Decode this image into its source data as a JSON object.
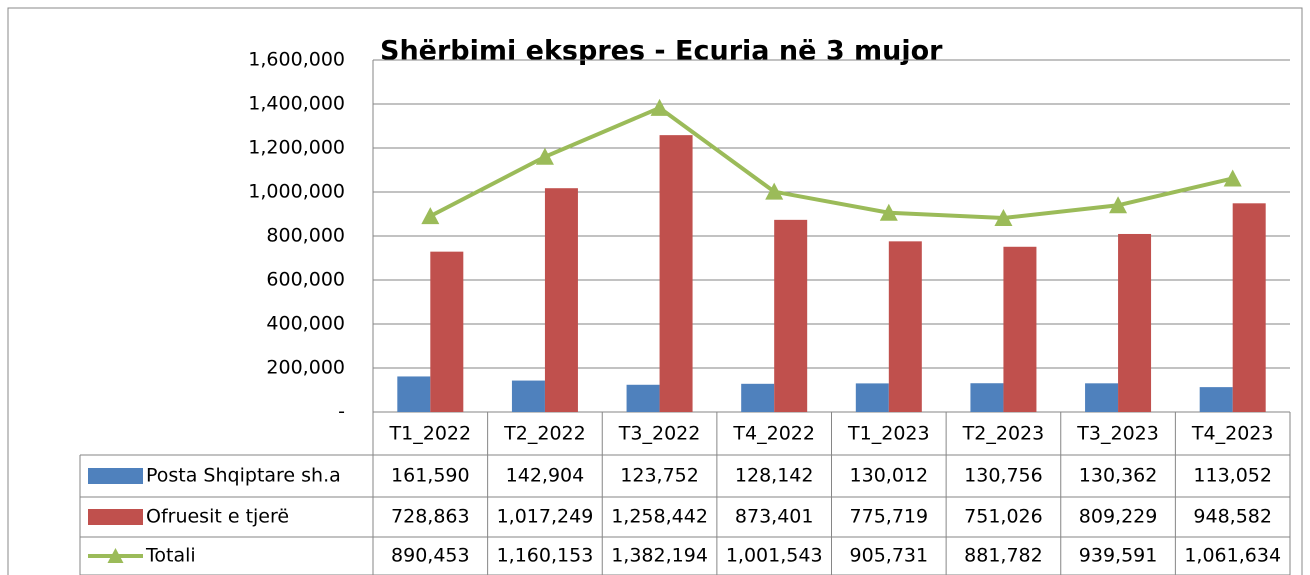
{
  "chart_data": {
    "type": "bar",
    "title": "Shërbimi ekspres - Ecuria në 3 mujor",
    "categories": [
      "T1_2022",
      "T2_2022",
      "T3_2022",
      "T4_2022",
      "T1_2023",
      "T2_2023",
      "T3_2023",
      "T4_2023"
    ],
    "series": [
      {
        "name": "Posta Shqiptare sh.a",
        "type": "bar",
        "color": "#4f81bd",
        "values": [
          161590,
          142904,
          123752,
          128142,
          130012,
          130756,
          130362,
          113052
        ],
        "value_labels": [
          "161,590",
          "142,904",
          "123,752",
          "128,142",
          "130,012",
          "130,756",
          "130,362",
          "113,052"
        ]
      },
      {
        "name": "Ofruesit e tjerë",
        "type": "bar",
        "color": "#c0504d",
        "values": [
          728863,
          1017249,
          1258442,
          873401,
          775719,
          751026,
          809229,
          948582
        ],
        "value_labels": [
          "728,863",
          "1,017,249",
          "1,258,442",
          "873,401",
          "775,719",
          "751,026",
          "809,229",
          "948,582"
        ]
      },
      {
        "name": "Totali",
        "type": "line",
        "color": "#9bbb59",
        "values": [
          890453,
          1160153,
          1382194,
          1001543,
          905731,
          881782,
          939591,
          1061634
        ],
        "value_labels": [
          "890,453",
          "1,160,153",
          "1,382,194",
          "1,001,543",
          "905,731",
          "881,782",
          "939,591",
          "1,061,634"
        ]
      }
    ],
    "ylim": [
      0,
      1600000
    ],
    "yticks": [
      {
        "value": 0,
        "label": "-"
      },
      {
        "value": 200000,
        "label": "200,000"
      },
      {
        "value": 400000,
        "label": "400,000"
      },
      {
        "value": 600000,
        "label": "600,000"
      },
      {
        "value": 800000,
        "label": "800,000"
      },
      {
        "value": 1000000,
        "label": "1,000,000"
      },
      {
        "value": 1200000,
        "label": "1,200,000"
      },
      {
        "value": 1400000,
        "label": "1,400,000"
      },
      {
        "value": 1600000,
        "label": "1,600,000"
      }
    ],
    "grid": true,
    "legend": "table"
  }
}
